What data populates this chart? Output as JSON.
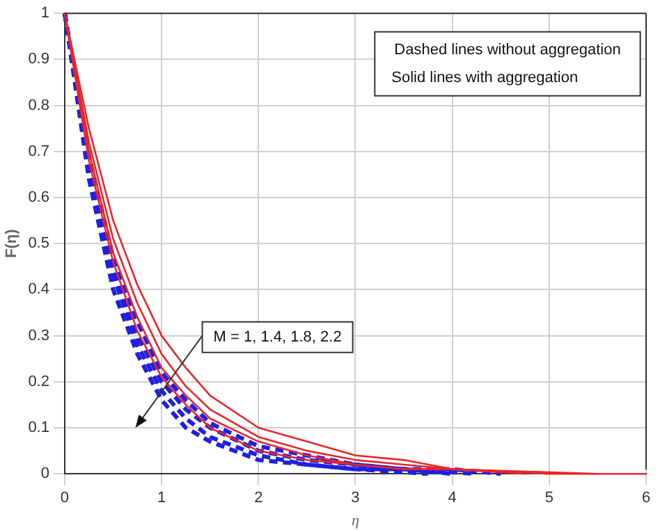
{
  "chart_data": {
    "type": "line",
    "xlabel": "η",
    "ylabel": "F(η)",
    "x": [
      0,
      0.25,
      0.5,
      0.75,
      1,
      1.25,
      1.5,
      2,
      2.5,
      3,
      3.5,
      4,
      5,
      6
    ],
    "series": [
      {
        "color": "#e8262a",
        "line_style": "solid",
        "values": [
          1,
          0.75,
          0.55,
          0.41,
          0.3,
          0.23,
          0.17,
          0.1,
          0.07,
          0.04,
          0.03,
          0.01,
          0,
          0
        ]
      },
      {
        "color": "#e8262a",
        "line_style": "solid",
        "x": [
          0,
          0.25,
          0.5,
          0.75,
          1,
          1.25,
          1.5,
          2,
          2.5,
          3,
          3.5,
          4,
          5.5
        ],
        "values": [
          1,
          0.72,
          0.51,
          0.37,
          0.26,
          0.19,
          0.14,
          0.08,
          0.05,
          0.03,
          0.02,
          0.01,
          0
        ]
      },
      {
        "color": "#e8262a",
        "line_style": "solid",
        "x": [
          0,
          0.25,
          0.5,
          0.75,
          1,
          1.25,
          1.5,
          2,
          2.5,
          3,
          3.5,
          4,
          5
        ],
        "values": [
          1,
          0.7,
          0.48,
          0.34,
          0.23,
          0.17,
          0.12,
          0.07,
          0.04,
          0.02,
          0.01,
          0.01,
          0
        ]
      },
      {
        "color": "#e8262a",
        "line_style": "solid",
        "x": [
          0,
          0.25,
          0.5,
          0.75,
          1,
          1.25,
          1.5,
          2,
          2.5,
          3,
          3.5,
          4,
          4.75
        ],
        "values": [
          1,
          0.68,
          0.46,
          0.31,
          0.21,
          0.15,
          0.1,
          0.05,
          0.03,
          0.02,
          0.01,
          0.01,
          0
        ]
      },
      {
        "color": "#2020e0",
        "line_style": "dashed",
        "x": [
          0,
          0.25,
          0.5,
          0.75,
          1,
          1.25,
          1.5,
          2,
          2.5,
          3,
          3.5,
          4,
          4.5
        ],
        "values": [
          1,
          0.69,
          0.47,
          0.33,
          0.22,
          0.16,
          0.11,
          0.06,
          0.04,
          0.02,
          0.01,
          0.01,
          0
        ]
      },
      {
        "color": "#2020e0",
        "line_style": "dashed",
        "x": [
          0,
          0.25,
          0.5,
          0.75,
          1,
          1.25,
          1.5,
          2,
          2.5,
          3,
          3.5,
          4.25
        ],
        "values": [
          1,
          0.67,
          0.45,
          0.3,
          0.2,
          0.14,
          0.1,
          0.05,
          0.03,
          0.02,
          0.01,
          0
        ]
      },
      {
        "color": "#2020e0",
        "line_style": "dashed",
        "x": [
          0,
          0.25,
          0.5,
          0.75,
          1,
          1.25,
          1.5,
          2,
          2.5,
          3,
          3.5,
          4
        ],
        "values": [
          1,
          0.66,
          0.43,
          0.28,
          0.18,
          0.12,
          0.08,
          0.04,
          0.02,
          0.01,
          0.01,
          0
        ]
      },
      {
        "color": "#2020e0",
        "line_style": "dashed",
        "x": [
          0,
          0.25,
          0.5,
          0.75,
          1,
          1.25,
          1.5,
          2,
          2.5,
          3,
          3.75
        ],
        "values": [
          1,
          0.64,
          0.4,
          0.26,
          0.16,
          0.1,
          0.07,
          0.03,
          0.02,
          0.01,
          0
        ]
      }
    ],
    "xlim": [
      0,
      6
    ],
    "xticks": [
      0,
      1,
      2,
      3,
      4,
      5,
      6
    ],
    "ylim": [
      0,
      1
    ],
    "yticks": [
      0,
      0.1,
      0.2,
      0.3,
      0.4,
      0.5,
      0.6,
      0.7,
      0.8,
      0.9,
      1
    ],
    "grid": true,
    "legend": false,
    "marker": "none",
    "annotations": [
      "Dashed lines without aggregation",
      "Solid lines with aggregation",
      "M = 1, 1.4, 1.8, 2.2"
    ]
  }
}
